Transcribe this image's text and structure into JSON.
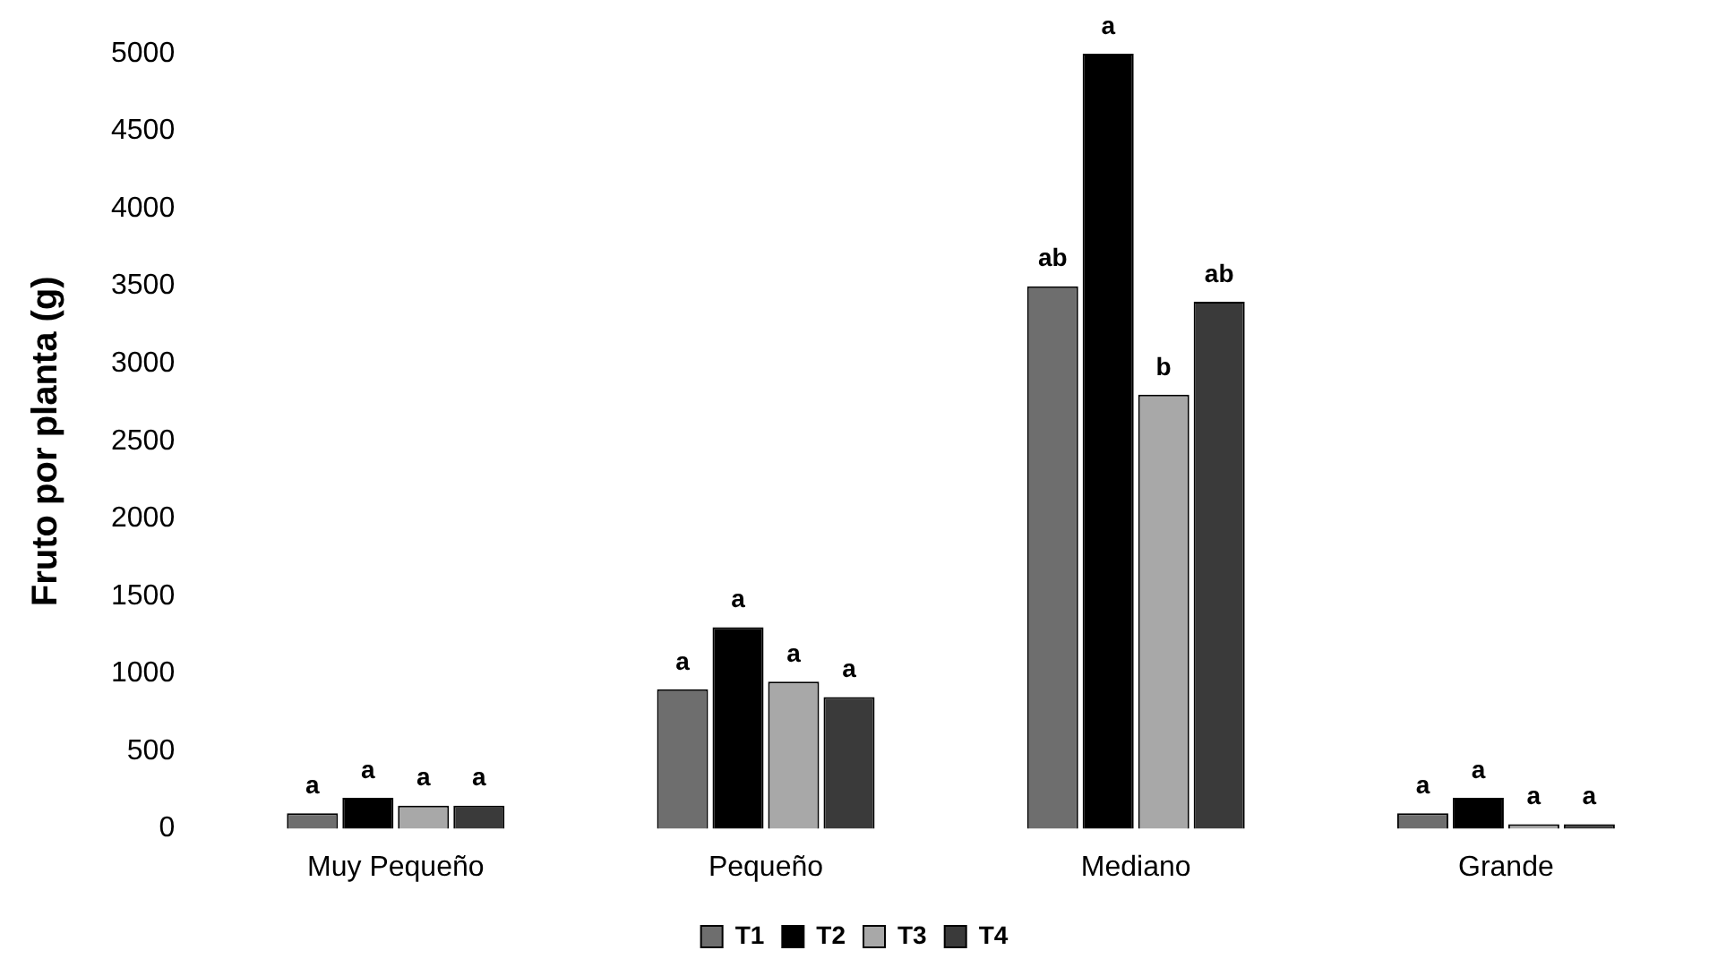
{
  "chart_data": {
    "type": "bar",
    "ylabel": "Fruto por planta (g)",
    "categories": [
      "Muy Pequeño",
      "Pequeño",
      "Mediano",
      "Grande"
    ],
    "series": [
      {
        "name": "T1",
        "color": "#6e6e6e",
        "values": [
          100,
          900,
          3500,
          100
        ],
        "value_labels": [
          "a",
          "a",
          "ab",
          "a"
        ]
      },
      {
        "name": "T2",
        "color": "#000000",
        "values": [
          200,
          1300,
          5000,
          200
        ],
        "value_labels": [
          "a",
          "a",
          "a",
          "a"
        ]
      },
      {
        "name": "T3",
        "color": "#a8a8a8",
        "values": [
          150,
          950,
          2800,
          30
        ],
        "value_labels": [
          "a",
          "a",
          "b",
          "a"
        ]
      },
      {
        "name": "T4",
        "color": "#3a3a3a",
        "values": [
          150,
          850,
          3400,
          30
        ],
        "value_labels": [
          "a",
          "a",
          "ab",
          "a"
        ]
      }
    ],
    "ylim": [
      0,
      5000
    ],
    "yticks": [
      0,
      500,
      1000,
      1500,
      2000,
      2500,
      3000,
      3500,
      4000,
      4500,
      5000
    ],
    "grid": false,
    "legend": "bottom"
  }
}
